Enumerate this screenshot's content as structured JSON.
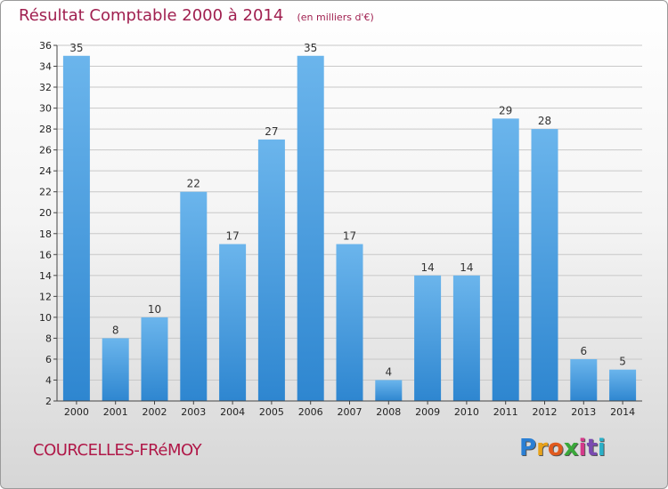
{
  "header": {
    "title": "Résultat Comptable 2000 à 2014",
    "unit": "(en milliers d'€)"
  },
  "footer": {
    "town": "COURCELLES-FRéMOY",
    "logo_letters": [
      "P",
      "r",
      "o",
      "x",
      "i",
      "t",
      "i"
    ],
    "logo_colors": [
      "#2a7fd4",
      "#e8a21a",
      "#e05a1e",
      "#3aa83a",
      "#d43a8a",
      "#7a4ab0",
      "#2ab0c8"
    ]
  },
  "colors": {
    "bar_light": "#6bb5ec",
    "bar_dark": "#2e86d0",
    "grid": "#c8c8c8",
    "axis": "#444444"
  },
  "chart_data": {
    "type": "bar",
    "title": "Résultat Comptable 2000 à 2014",
    "xlabel": "",
    "ylabel": "",
    "categories": [
      "2000",
      "2001",
      "2002",
      "2003",
      "2004",
      "2005",
      "2006",
      "2007",
      "2008",
      "2009",
      "2010",
      "2011",
      "2012",
      "2013",
      "2014"
    ],
    "values": [
      35,
      8,
      10,
      22,
      17,
      27,
      35,
      17,
      4,
      14,
      14,
      29,
      28,
      6,
      5
    ],
    "ylim": [
      2,
      36
    ],
    "yticks": [
      2,
      4,
      6,
      8,
      10,
      12,
      14,
      16,
      18,
      20,
      22,
      24,
      26,
      28,
      30,
      32,
      34,
      36
    ],
    "grid": true
  }
}
